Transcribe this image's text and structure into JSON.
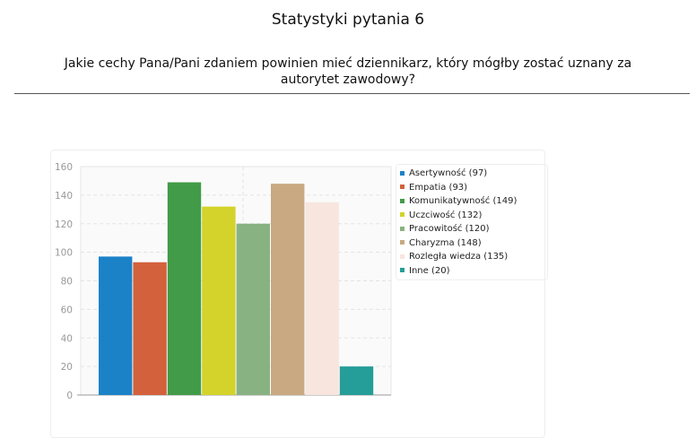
{
  "header": {
    "title": "Statystyki pytania 6",
    "question": "Jakie cechy Pana/Pani zdaniem powinien mieć dziennikarz, który mógłby zostać uznany za autorytet zawodowy?"
  },
  "chart_data": {
    "type": "bar",
    "categories": [
      "Asertywność",
      "Empatia",
      "Komunikatywność",
      "Uczciwość",
      "Pracowitość",
      "Charyzma",
      "Rozległa wiedza",
      "Inne"
    ],
    "values": [
      97,
      93,
      149,
      132,
      120,
      148,
      135,
      20
    ],
    "colors": [
      "#1b82c8",
      "#d3613c",
      "#429b48",
      "#d3d32b",
      "#89b282",
      "#c8a982",
      "#f7e5de",
      "#259d98"
    ],
    "legend_labels": [
      "Asertywność (97)",
      "Empatia (93)",
      "Komunikatywność (149)",
      "Uczciwość (132)",
      "Pracowitość (120)",
      "Charyzma (148)",
      "Rozległa wiedza (135)",
      "Inne (20)"
    ],
    "yticks": [
      "0",
      "20",
      "40",
      "60",
      "80",
      "100",
      "120",
      "140",
      "160"
    ],
    "ylim": [
      0,
      160
    ],
    "grid": true,
    "legend_position": "right",
    "title": "",
    "xlabel": "",
    "ylabel": ""
  }
}
